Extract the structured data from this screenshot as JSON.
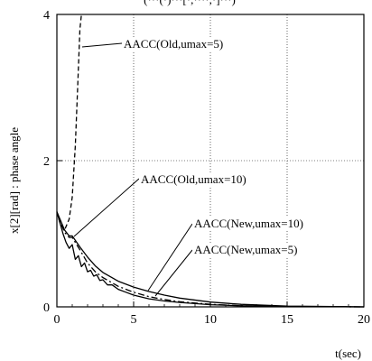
{
  "chart_data": {
    "type": "line",
    "title": "",
    "xlabel": "t(sec)",
    "ylabel": "x[2][rad] : phase angle",
    "xlim": [
      0,
      20
    ],
    "ylim": [
      0,
      4
    ],
    "x_ticks": [
      0,
      5,
      10,
      15,
      20
    ],
    "y_ticks": [
      0,
      2,
      4
    ],
    "grid": true,
    "x_tick_labels": [
      "0",
      "5",
      "10",
      "15",
      "20"
    ],
    "y_tick_labels": [
      "0",
      "2",
      "4"
    ],
    "series": [
      {
        "name": "AACC(Old,umax=5)",
        "style": "dashed",
        "x": [
          0,
          0.2,
          0.5,
          0.8,
          1.0,
          1.2,
          1.35,
          1.5,
          1.6
        ],
        "y": [
          1.3,
          1.15,
          1.05,
          1.2,
          1.5,
          2.2,
          3.0,
          3.8,
          4.0
        ]
      },
      {
        "name": "AACC(Old,umax=10)",
        "style": "solid",
        "x": [
          0,
          0.2,
          0.4,
          0.6,
          0.8,
          1.0,
          1.2,
          1.4,
          1.6,
          1.8,
          2.0,
          2.2,
          2.4,
          2.6,
          2.8,
          3.0,
          3.3,
          3.6,
          4.0,
          4.5,
          5,
          6,
          7,
          8,
          10,
          12,
          15,
          20
        ],
        "y": [
          1.3,
          1.15,
          1.0,
          0.88,
          0.8,
          0.85,
          0.65,
          0.7,
          0.55,
          0.6,
          0.48,
          0.5,
          0.42,
          0.44,
          0.36,
          0.37,
          0.3,
          0.3,
          0.24,
          0.2,
          0.16,
          0.11,
          0.08,
          0.06,
          0.03,
          0.015,
          0.005,
          0.0
        ]
      },
      {
        "name": "AACC(New,umax=10)",
        "style": "solid",
        "x": [
          0,
          0.2,
          0.5,
          0.8,
          1.0,
          1.5,
          2.0,
          2.5,
          3.0,
          4.0,
          5,
          6,
          7,
          8,
          10,
          12,
          15,
          20
        ],
        "y": [
          1.3,
          1.2,
          1.05,
          0.97,
          0.97,
          0.82,
          0.68,
          0.56,
          0.47,
          0.35,
          0.27,
          0.21,
          0.16,
          0.12,
          0.065,
          0.035,
          0.01,
          0.0
        ]
      },
      {
        "name": "AACC(New,umax=5)",
        "style": "dashdot",
        "x": [
          0,
          0.2,
          0.5,
          0.8,
          1.0,
          1.5,
          2.0,
          2.5,
          3.0,
          4.0,
          5,
          6,
          7,
          8,
          10,
          12,
          15,
          20
        ],
        "y": [
          1.3,
          1.18,
          1.02,
          0.95,
          0.95,
          0.78,
          0.6,
          0.48,
          0.4,
          0.28,
          0.2,
          0.14,
          0.1,
          0.07,
          0.035,
          0.015,
          0.005,
          0.0
        ]
      }
    ],
    "annotations": [
      {
        "text": "AACC(Old,umax=5)",
        "target_series": 0
      },
      {
        "text": "AACC(Old,umax=10)",
        "target_series": 1
      },
      {
        "text": "AACC(New,umax=10)",
        "target_series": 2
      },
      {
        "text": "AACC(New,umax=5)",
        "target_series": 3
      }
    ],
    "top_partial_text": "(···(·)···[·,····,·]···)"
  }
}
